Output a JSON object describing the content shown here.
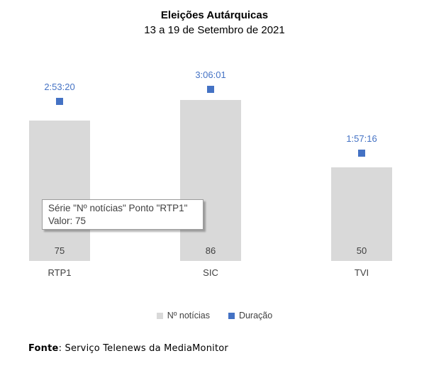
{
  "chart": {
    "title": "Eleições Autárquicas",
    "subtitle": "13 a 19 de Setembro de 2021"
  },
  "chart_data": {
    "type": "bar",
    "categories": [
      "RTP1",
      "SIC",
      "TVI"
    ],
    "series": [
      {
        "name": "Nº notícias",
        "type": "bar",
        "color": "#d9d9d9",
        "values": [
          75,
          86,
          50
        ]
      },
      {
        "name": "Duração",
        "type": "point",
        "color": "#4472c4",
        "values": [
          "2:53:20",
          "3:06:01",
          "1:57:16"
        ]
      }
    ],
    "title": "Eleições Autárquicas",
    "subtitle": "13 a 19 de Setembro de 2021",
    "xlabel": "",
    "ylabel": "",
    "gridlines": false,
    "axes_visible": false,
    "legend_position": "bottom",
    "bar_value_labels_inside": [
      75,
      86,
      50
    ],
    "point_value_labels": [
      "2:53:20",
      "3:06:01",
      "1:57:16"
    ]
  },
  "tooltip": {
    "line1": "Série \"Nº notícias\" Ponto \"RTP1\"",
    "line2": "Valor: 75"
  },
  "legend": {
    "news_label": "Nº notícias",
    "duration_label": "Duração"
  },
  "footer": {
    "label": "Fonte",
    "text": ": Serviço Telenews da MediaMonitor"
  }
}
